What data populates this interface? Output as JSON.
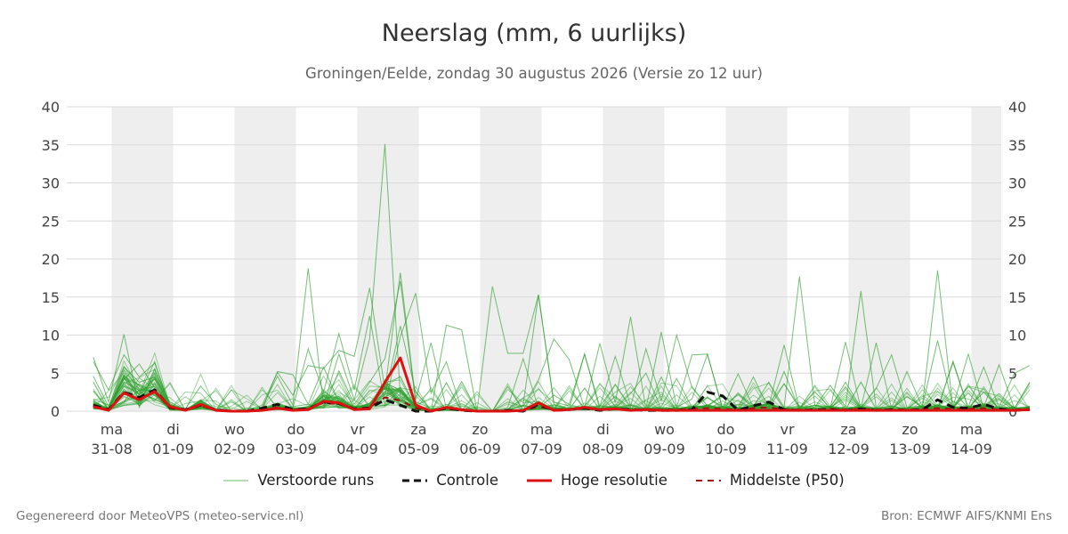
{
  "header": {
    "title": "Neerslag (mm, 6 uurlijks)",
    "subtitle": "Groningen/Eelde, zondag 30 augustus 2026 (Versie zo 12 uur)"
  },
  "footer": {
    "left": "Gegenereerd door MeteoVPS (meteo-service.nl)",
    "right": "Bron: ECMWF AIFS/KNMI Ens"
  },
  "legend": {
    "perturbed": "Verstoorde runs",
    "control": "Controle",
    "hires": "Hoge resolutie",
    "median": "Middelste (P50)"
  },
  "colors": {
    "perturbed": "#2ca02c",
    "control": "#111111",
    "hires": "#dd1111",
    "median": "#a01010",
    "weekend_band": "#eeeeee",
    "grid": "#d9d9d9"
  },
  "chart_data": {
    "type": "line",
    "title": "Neerslag (mm, 6 uurlijks)",
    "ylim": [
      0,
      40
    ],
    "yticks": [
      0,
      5,
      10,
      15,
      20,
      25,
      30,
      35,
      40
    ],
    "grid": true,
    "legend_position": "bottom",
    "x_start": "2026-08-30 18:00",
    "step_hours": 6,
    "x_ticks": [
      {
        "day": "ma",
        "date": "31-08"
      },
      {
        "day": "di",
        "date": "01-09"
      },
      {
        "day": "wo",
        "date": "02-09"
      },
      {
        "day": "do",
        "date": "03-09"
      },
      {
        "day": "vr",
        "date": "04-09"
      },
      {
        "day": "za",
        "date": "05-09"
      },
      {
        "day": "zo",
        "date": "06-09"
      },
      {
        "day": "ma",
        "date": "07-09"
      },
      {
        "day": "di",
        "date": "08-09"
      },
      {
        "day": "wo",
        "date": "09-09"
      },
      {
        "day": "do",
        "date": "10-09"
      },
      {
        "day": "vr",
        "date": "11-09"
      },
      {
        "day": "za",
        "date": "12-09"
      },
      {
        "day": "zo",
        "date": "13-09"
      },
      {
        "day": "ma",
        "date": "14-09"
      }
    ],
    "series": [
      {
        "name": "Controle",
        "values": [
          0.8,
          0.2,
          2.5,
          1.8,
          2.8,
          0.5,
          0.2,
          0.8,
          0.2,
          0,
          0,
          0.4,
          0.9,
          0.2,
          0.3,
          1.2,
          1.0,
          0.3,
          0.4,
          1.5,
          0.8,
          0,
          0,
          0.4,
          0.1,
          0,
          0,
          0.1,
          0,
          0.9,
          0.1,
          0.2,
          0.4,
          0.1,
          0.3,
          0.2,
          0.1,
          0.1,
          0.1,
          0.2,
          2.5,
          2.0,
          0.1,
          0.7,
          1.2,
          0.2,
          0.1,
          0.2,
          0.2,
          0.1,
          0.3,
          0.1,
          0.2,
          0.1,
          0.2,
          1.5,
          0.5,
          0.4,
          0.9,
          0.3,
          0.1,
          0.2
        ]
      },
      {
        "name": "Hoge resolutie",
        "values": [
          0.6,
          0.1,
          2.4,
          1.5,
          2.6,
          0.6,
          0.1,
          0.9,
          0.1,
          0,
          0,
          0.1,
          0.4,
          0.1,
          0.2,
          1.3,
          1.1,
          0.2,
          0.3,
          3.8,
          7.0,
          0.8,
          0,
          0.5,
          0.2,
          0,
          0,
          0,
          0.1,
          1.1,
          0.1,
          0.2,
          0.5,
          0.2,
          0.3,
          0.1,
          0.2,
          0.1,
          0.1,
          0.1,
          0.1,
          0.1,
          0.1,
          0.1,
          0.1,
          0.1,
          0.1,
          0.1,
          0.1,
          0.1,
          0.1,
          0.1,
          0.1,
          0.1,
          0.1,
          0.1,
          0.1,
          0.1,
          0.1,
          0.1,
          0.1,
          0.2
        ]
      },
      {
        "name": "Middelste (P50)",
        "values": [
          0.7,
          0.2,
          2.3,
          1.6,
          2.5,
          0.4,
          0.1,
          0.7,
          0.1,
          0,
          0,
          0.2,
          0.5,
          0.2,
          0.3,
          1.1,
          0.9,
          0.3,
          0.5,
          1.8,
          1.4,
          0.4,
          0,
          0.3,
          0.1,
          0,
          0,
          0.1,
          0.1,
          0.6,
          0.2,
          0.2,
          0.3,
          0.2,
          0.3,
          0.2,
          0.2,
          0.2,
          0.2,
          0.3,
          0.4,
          0.3,
          0.2,
          0.4,
          0.5,
          0.2,
          0.2,
          0.2,
          0.3,
          0.2,
          0.3,
          0.2,
          0.2,
          0.2,
          0.3,
          0.4,
          0.3,
          0.3,
          0.4,
          0.2,
          0.2,
          0.3
        ]
      }
    ],
    "perturbed_runs": [
      [
        7.1,
        1.2,
        10.1,
        0.5,
        5.6,
        0.8,
        0.1,
        1.2,
        0.3,
        0,
        0,
        0.2,
        5.2,
        4.8,
        0.9,
        5.8,
        1.2,
        0.4,
        0.8,
        2.1,
        11.2,
        2.5,
        0.2,
        0.9,
        0.1,
        0,
        0,
        0.2,
        0.8,
        15.3,
        0.9,
        0.3,
        7.5,
        0.2,
        0.4,
        2.3,
        5.0,
        0.3,
        0.5,
        1.6,
        7.5,
        0.4,
        0.9,
        0.6,
        3.8,
        0.5,
        17.7,
        0.8,
        0.4,
        9.1,
        0.3,
        0.2,
        0.4,
        5.2,
        0.6,
        18.5,
        0.3,
        0.6,
        5.8,
        0.5,
        5.0,
        6.0
      ],
      [
        6.5,
        2.8,
        7.4,
        4.5,
        6.3,
        0.9,
        0.3,
        3.3,
        0.9,
        0,
        0.4,
        0.5,
        4.6,
        0.8,
        18.8,
        0.7,
        7.5,
        1.5,
        9.5,
        35.1,
        2.0,
        0.8,
        0,
        11.3,
        10.7,
        0,
        16.4,
        7.6,
        7.6,
        15.3,
        1.2,
        0.7,
        0.5,
        8.9,
        1.1,
        12.4,
        0.3,
        10.4,
        0.5,
        7.4,
        7.5,
        0.2,
        0.5,
        0.3,
        0.6,
        8.7,
        0.3,
        0.8,
        0.2,
        0.6,
        15.8,
        0.4,
        0.7,
        0.2,
        0.3,
        0.2,
        6.6,
        0.4,
        0.5,
        6.1,
        0.3,
        0.4
      ],
      [
        4.6,
        0.6,
        5.8,
        3.8,
        4.5,
        1.2,
        0.2,
        0.4,
        0.2,
        0,
        0,
        0.8,
        5.1,
        2.1,
        6.0,
        5.6,
        8.0,
        7.2,
        16.2,
        2.8,
        18.2,
        1.5,
        9.0,
        0.4,
        3.9,
        0,
        0,
        1.2,
        0.6,
        4.1,
        9.5,
        6.8,
        0.4,
        0.6,
        7.2,
        0.8,
        0.2,
        4.5,
        0.4,
        0.4,
        1.8,
        0.6,
        0.4,
        4.5,
        0.3,
        5.2,
        0.2,
        0.8,
        0.6,
        3.2,
        0.4,
        9.0,
        0.3,
        1.9,
        0.6,
        9.3,
        0.6,
        7.5,
        0.3,
        0.2,
        0.4,
        0.3
      ],
      [
        2.7,
        0.3,
        4.2,
        6.2,
        3.1,
        0.5,
        0.1,
        0.7,
        0.1,
        0,
        0,
        0.3,
        0.8,
        0.4,
        8.2,
        2.5,
        10.2,
        2.8,
        12.5,
        0.8,
        9.8,
        15.5,
        2.4,
        6.5,
        0.2,
        0,
        0,
        0.5,
        6.9,
        0.4,
        2.1,
        0.9,
        7.5,
        0.6,
        3.5,
        0.6,
        8.2,
        1.4,
        10.0,
        3.1,
        0.7,
        0.4,
        4.9,
        0.5,
        0.3,
        3.6,
        0.6,
        0.5,
        3.4,
        0.6,
        0.4,
        3.0,
        7.4,
        0.5,
        0.7,
        0.4,
        6.4,
        0.3,
        0.6,
        2.3,
        0.4,
        0.5
      ],
      [
        1.6,
        0.8,
        3.5,
        2.2,
        6.5,
        0.3,
        0.2,
        0.6,
        0.3,
        0,
        0,
        0.2,
        0.5,
        0.6,
        0.9,
        0.4,
        5.3,
        0.9,
        3.8,
        6.9,
        17.1,
        1.2,
        0.4,
        0.2,
        0.7,
        0,
        0,
        0.3,
        1.7,
        0.5,
        0.8,
        0.4,
        0.6,
        0.7,
        0.5,
        0.8,
        0.3,
        0.6,
        4.3,
        0.5,
        0.6,
        2.1,
        0.4,
        0.8,
        0.3,
        0.6,
        0.5,
        0.7,
        0.4,
        3.8,
        0.5,
        0.4,
        0.6,
        0.3,
        0.5,
        0.7,
        0.4,
        0.5,
        0.3,
        0.6,
        0.4,
        0.5
      ]
    ]
  }
}
